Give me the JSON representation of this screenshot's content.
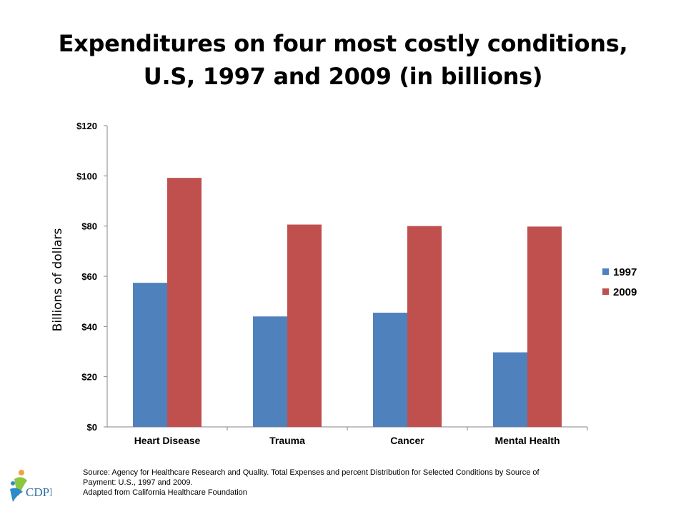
{
  "slide": {
    "title_line1": "Expenditures on four most costly conditions,",
    "title_line2": "U.S, 1997 and 2009 (in billions)"
  },
  "chart_data": {
    "type": "bar",
    "categories": [
      "Heart Disease",
      "Trauma",
      "Cancer",
      "Mental Health"
    ],
    "series": [
      {
        "name": "1997",
        "color": "#4F81BD",
        "values": [
          57.4,
          44.0,
          45.5,
          29.7
        ]
      },
      {
        "name": "2009",
        "color": "#C0504D",
        "values": [
          99.2,
          80.6,
          80.0,
          79.8
        ]
      }
    ],
    "ylabel": "Billions of dollars",
    "ylim": [
      0,
      120
    ],
    "yticks": [
      0,
      20,
      40,
      60,
      80,
      100,
      120
    ],
    "ytick_labels": [
      "$0",
      "$20",
      "$40",
      "$60",
      "$80",
      "$100",
      "$120"
    ],
    "grid": false,
    "legend_position": "right"
  },
  "footer": {
    "source_line1": "Source:  Agency for Healthcare Research and Quality.  Total Expenses and percent Distribution for Selected Conditions by Source of",
    "source_line2": "Payment:  U.S., 1997 and 2009.",
    "source_line3": "Adapted from California Healthcare Foundation",
    "logo_text": "CDPH"
  }
}
